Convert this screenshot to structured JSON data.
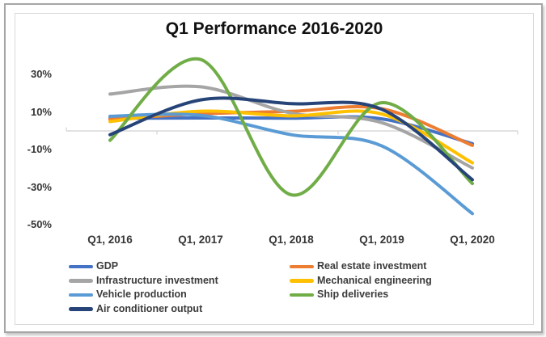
{
  "window": {
    "background": "#ffffff",
    "outer_border_color": "#a6a6a6",
    "card_border_color": "#d9d9d9",
    "gridline_color": "#d9d9d9",
    "label_color": "#363636"
  },
  "chart_data": {
    "type": "line",
    "smooth": true,
    "title": "Q1 Performance 2016-2020",
    "xlabel": "",
    "ylabel": "",
    "categories": [
      "Q1, 2016",
      "Q1, 2017",
      "Q1, 2018",
      "Q1, 2019",
      "Q1, 2020"
    ],
    "y_ticks": [
      "30%",
      "10%",
      "-10%",
      "-30%",
      "-50%"
    ],
    "y_tick_values": [
      30,
      10,
      -10,
      -30,
      -50
    ],
    "ylim": [
      -55,
      42
    ],
    "grid": "zero-line-only",
    "legend_position": "bottom-two-columns",
    "series": [
      {
        "name": "GDP",
        "color": "#4472C4",
        "values": [
          6.7,
          6.9,
          6.8,
          6.4,
          -6.8
        ]
      },
      {
        "name": "Real estate investment",
        "color": "#ED7D31",
        "values": [
          6.2,
          9.1,
          10.4,
          11.8,
          -7.7
        ]
      },
      {
        "name": "Infrastructure investment",
        "color": "#A5A5A5",
        "values": [
          19.6,
          23.5,
          9.5,
          4.4,
          -19.7
        ]
      },
      {
        "name": "Mechanical engineering",
        "color": "#FFC000",
        "values": [
          5.0,
          10.5,
          8.0,
          9.0,
          -17.0
        ]
      },
      {
        "name": "Vehicle production",
        "color": "#5B9BD5",
        "values": [
          7.8,
          8.3,
          -2.0,
          -8.0,
          -44.0
        ]
      },
      {
        "name": "Ship deliveries",
        "color": "#70AD47",
        "values": [
          -5.0,
          38.0,
          -34.0,
          15.0,
          -28.0
        ]
      },
      {
        "name": "Air conditioner output",
        "color": "#264478",
        "values": [
          -2.0,
          16.5,
          14.5,
          11.5,
          -26.0
        ]
      }
    ]
  }
}
